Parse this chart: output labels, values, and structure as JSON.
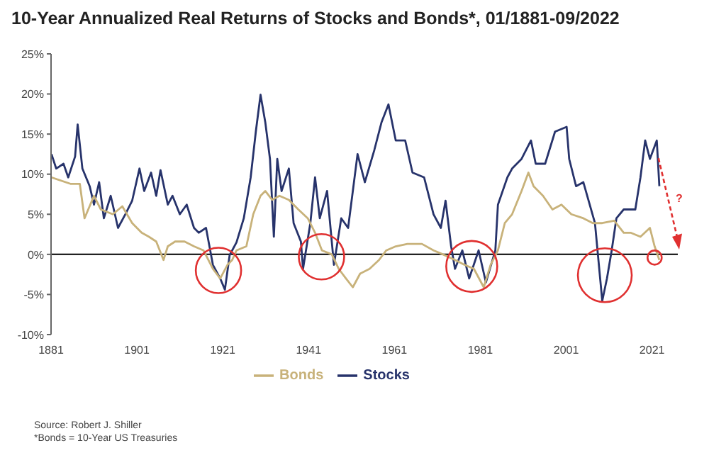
{
  "chart_data": {
    "type": "line",
    "title": "10-Year Annualized Real Returns of Stocks and Bonds*, 01/1881-09/2022",
    "series": [
      {
        "name": "Stocks",
        "color": "#27336b",
        "x": [
          1881.1,
          1882.2,
          1883.9,
          1885,
          1886.6,
          1887.2,
          1888.3,
          1890,
          1891,
          1892.2,
          1893.3,
          1894.9,
          1896.6,
          1898.3,
          1899.9,
          1901.6,
          1902.7,
          1904.3,
          1905.5,
          1906.5,
          1908.2,
          1909.3,
          1911,
          1912.6,
          1914.3,
          1915.4,
          1917.1,
          1918.7,
          1920.4,
          1921.5,
          1922.6,
          1924.2,
          1925.9,
          1927.5,
          1928.7,
          1929.8,
          1930.9,
          1932,
          1932.9,
          1933.7,
          1934.7,
          1936.4,
          1937.5,
          1939.2,
          1939.7,
          1941.4,
          1942.5,
          1943.6,
          1945.3,
          1946.9,
          1948.6,
          1950.2,
          1952.4,
          1954.1,
          1956.3,
          1958,
          1959.6,
          1961.3,
          1963.5,
          1965.2,
          1967.9,
          1970.1,
          1971.8,
          1972.9,
          1974.2,
          1975.1,
          1976.8,
          1978.4,
          1980.6,
          1982.3,
          1984.5,
          1985.1,
          1987.3,
          1988.4,
          1990.6,
          1992.8,
          1993.9,
          1996.1,
          1998.4,
          2001.1,
          2001.7,
          2003.3,
          2005,
          2007.7,
          2009.4,
          2010.5,
          2011.6,
          2012.7,
          2014.4,
          2017.1,
          2018.3,
          2019.4,
          2020.5,
          2022.1,
          2022.7
        ],
        "values": [
          12.5,
          10.7,
          11.3,
          9.6,
          12.2,
          16.2,
          10.7,
          8.5,
          6.2,
          9.0,
          4.5,
          7.3,
          3.3,
          5.0,
          6.7,
          10.7,
          7.9,
          10.2,
          7.3,
          10.5,
          6.2,
          7.3,
          5.0,
          6.2,
          3.3,
          2.7,
          3.3,
          -1.3,
          -3.0,
          -4.4,
          -0.1,
          1.5,
          4.5,
          9.6,
          15.3,
          19.9,
          16.5,
          11.9,
          2.2,
          11.9,
          7.9,
          10.7,
          3.9,
          1.6,
          -1.8,
          3.9,
          9.6,
          4.5,
          7.9,
          -1.3,
          4.5,
          3.3,
          12.5,
          9.0,
          13.0,
          16.5,
          18.7,
          14.2,
          14.2,
          10.2,
          9.6,
          5.0,
          3.3,
          6.7,
          1.0,
          -1.8,
          0.5,
          -3.0,
          0.5,
          -3.5,
          0.5,
          6.2,
          9.6,
          10.7,
          11.9,
          14.2,
          11.3,
          11.3,
          15.3,
          15.9,
          11.9,
          8.5,
          9.0,
          3.9,
          -5.8,
          -3.0,
          0.5,
          4.5,
          5.6,
          5.6,
          9.6,
          14.2,
          11.9,
          14.2,
          8.5
        ]
      },
      {
        "name": "Bonds",
        "color": "#c8b27a",
        "x": [
          1881.1,
          1885.5,
          1887.7,
          1888.8,
          1891,
          1892.6,
          1895.4,
          1897.6,
          1899.9,
          1902.1,
          1903.8,
          1905.5,
          1907.2,
          1908.2,
          1909.9,
          1912.1,
          1914.3,
          1916.5,
          1918.7,
          1920.4,
          1922.1,
          1923.2,
          1924.2,
          1926.5,
          1928.1,
          1929.8,
          1930.9,
          1932.5,
          1934.2,
          1936.4,
          1938.6,
          1940.8,
          1942.5,
          1944.1,
          1946.4,
          1948,
          1949.7,
          1951.3,
          1953,
          1955.2,
          1957.4,
          1959.1,
          1961.3,
          1964,
          1967.4,
          1970.1,
          1972.3,
          1975.1,
          1977.3,
          1979.5,
          1981.8,
          1983.4,
          1985.1,
          1986.7,
          1988.4,
          1990.6,
          1992.2,
          1993.4,
          1995.6,
          1997.8,
          1999.9,
          2002.2,
          2005,
          2007.2,
          2009.4,
          2012.2,
          2014.4,
          2016,
          2018.3,
          2020.5,
          2021.6,
          2022.7
        ],
        "values": [
          9.6,
          8.8,
          8.8,
          4.5,
          7.3,
          5.6,
          5.0,
          6.0,
          3.9,
          2.7,
          2.2,
          1.6,
          -0.7,
          1.0,
          1.6,
          1.6,
          1.0,
          0.5,
          -1.8,
          -3.0,
          -1.3,
          -0.7,
          0.5,
          1.0,
          5.0,
          7.3,
          7.9,
          6.8,
          7.3,
          6.8,
          5.6,
          4.5,
          2.7,
          0.5,
          0.0,
          -1.8,
          -3.0,
          -4.1,
          -2.4,
          -1.8,
          -0.7,
          0.5,
          1.0,
          1.3,
          1.3,
          0.5,
          0.0,
          -0.7,
          -1.3,
          -1.8,
          -4.1,
          -1.3,
          0.5,
          3.9,
          5.0,
          7.9,
          10.2,
          8.5,
          7.3,
          5.6,
          6.2,
          5.0,
          4.5,
          3.9,
          3.9,
          4.2,
          2.7,
          2.7,
          2.2,
          3.3,
          1.0,
          -0.7
        ]
      }
    ],
    "xlim": [
      1881,
      2027
    ],
    "xticks": [
      1881,
      1901,
      1921,
      1941,
      1961,
      1981,
      2001,
      2021
    ],
    "ylim": [
      -10,
      25
    ],
    "yticks": [
      {
        "value": -10,
        "label": "-10%"
      },
      {
        "value": -5,
        "label": "-5%"
      },
      {
        "value": 0,
        "label": "0%"
      },
      {
        "value": 5,
        "label": "5%"
      },
      {
        "value": 10,
        "label": "10%"
      },
      {
        "value": 15,
        "label": "15%"
      },
      {
        "value": 20,
        "label": "20%"
      },
      {
        "value": 25,
        "label": "25%"
      }
    ],
    "ref_lines": [
      {
        "axis": "y",
        "value": 0,
        "color": "#000000"
      }
    ],
    "legend": "bottom",
    "grid": false,
    "marker": "none",
    "line_style": "solid",
    "annotations": [
      "?",
      "Source: Robert J. Shiller",
      "*Bonds = 10-Year US Treasuries"
    ]
  }
}
